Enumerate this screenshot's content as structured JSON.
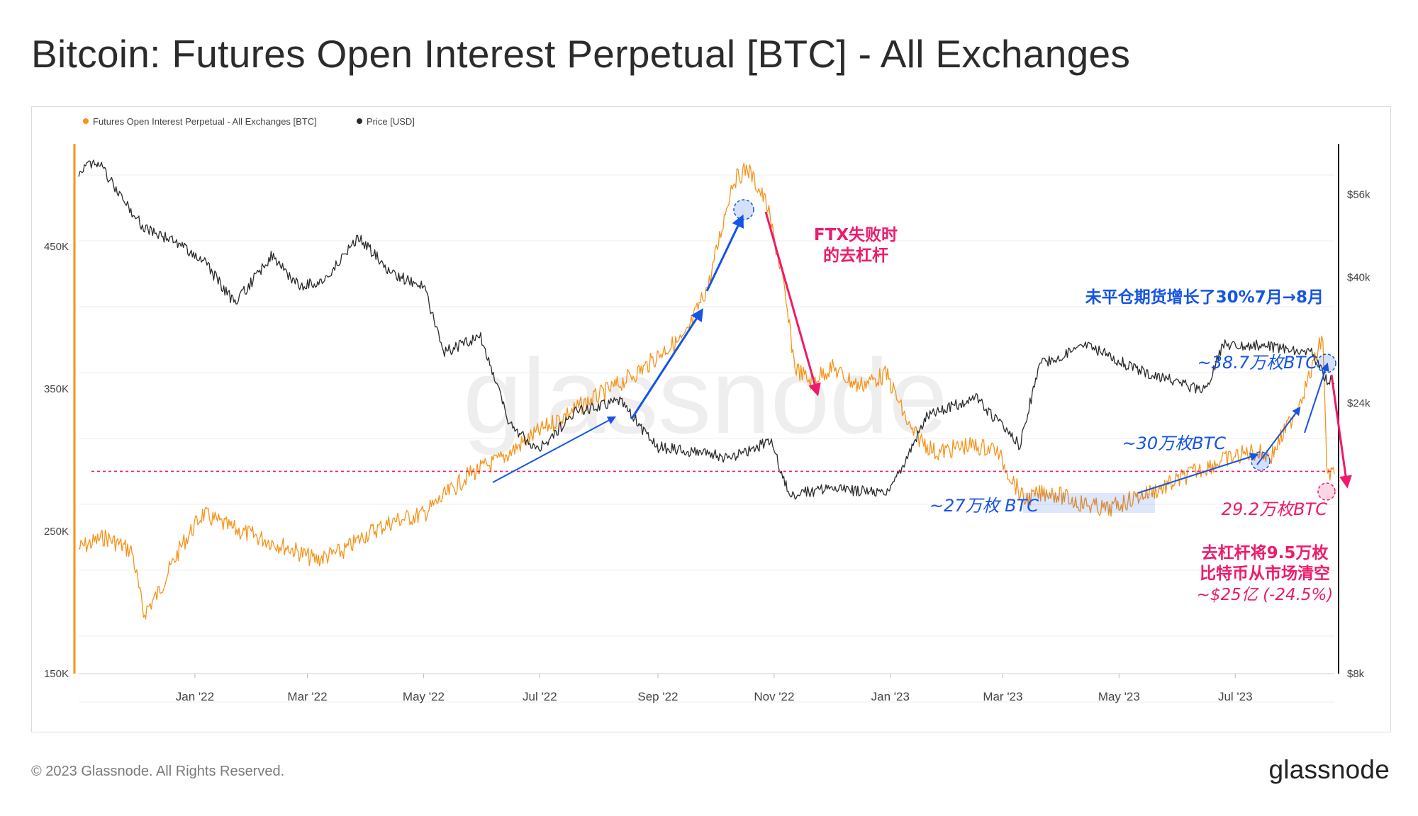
{
  "title": "Bitcoin: Futures Open Interest Perpetual [BTC] - All Exchanges",
  "footer": {
    "copyright": "© 2023 Glassnode. All Rights Reserved.",
    "logo": "glassnode"
  },
  "watermark": "glassnode",
  "colors": {
    "open_interest": "#f7931a",
    "price": "#2b2b2b",
    "annotation_blue": "#1554e6",
    "annotation_red": "#ef1a6b"
  },
  "chart_data": {
    "type": "line",
    "legend_position": "top-left",
    "grid": true,
    "x_ticks": [
      "Jan '22",
      "Mar '22",
      "May '22",
      "Jul '22",
      "Sep '22",
      "Nov '22",
      "Jan '23",
      "Mar '23",
      "May '23",
      "Jul '23"
    ],
    "y_left": {
      "ticks": [
        "150K",
        "250K",
        "350K",
        "450K"
      ],
      "range": [
        150000,
        520000
      ]
    },
    "y_right": {
      "ticks": [
        "$8k",
        "$24k",
        "$40k",
        "$56k"
      ],
      "range": [
        8000,
        68000
      ],
      "scale": "log"
    },
    "series": [
      {
        "name": "Futures Open Interest Perpetual - All Exchanges [BTC]",
        "axis": "left",
        "points": [
          [
            "2021-11-01",
            238000
          ],
          [
            "2021-11-15",
            246000
          ],
          [
            "2021-11-29",
            236000
          ],
          [
            "2021-12-05",
            192000
          ],
          [
            "2021-12-12",
            205000
          ],
          [
            "2021-12-25",
            240000
          ],
          [
            "2022-01-05",
            262000
          ],
          [
            "2022-01-20",
            252000
          ],
          [
            "2022-02-05",
            245000
          ],
          [
            "2022-02-20",
            238000
          ],
          [
            "2022-03-05",
            230000
          ],
          [
            "2022-03-20",
            236000
          ],
          [
            "2022-04-01",
            248000
          ],
          [
            "2022-04-15",
            257000
          ],
          [
            "2022-05-01",
            262000
          ],
          [
            "2022-05-15",
            278000
          ],
          [
            "2022-05-25",
            290000
          ],
          [
            "2022-06-10",
            300000
          ],
          [
            "2022-06-25",
            315000
          ],
          [
            "2022-07-10",
            328000
          ],
          [
            "2022-07-25",
            340000
          ],
          [
            "2022-08-10",
            352000
          ],
          [
            "2022-08-25",
            365000
          ],
          [
            "2022-09-05",
            378000
          ],
          [
            "2022-09-15",
            385000
          ],
          [
            "2022-09-28",
            425000
          ],
          [
            "2022-10-10",
            495000
          ],
          [
            "2022-10-18",
            505000
          ],
          [
            "2022-10-28",
            480000
          ],
          [
            "2022-11-05",
            430000
          ],
          [
            "2022-11-12",
            365000
          ],
          [
            "2022-11-20",
            355000
          ],
          [
            "2022-12-01",
            365000
          ],
          [
            "2022-12-15",
            352000
          ],
          [
            "2022-12-30",
            360000
          ],
          [
            "2023-01-12",
            320000
          ],
          [
            "2023-01-25",
            305000
          ],
          [
            "2023-02-10",
            310000
          ],
          [
            "2023-02-25",
            308000
          ],
          [
            "2023-03-12",
            272000
          ],
          [
            "2023-03-25",
            278000
          ],
          [
            "2023-04-10",
            270000
          ],
          [
            "2023-04-25",
            265000
          ],
          [
            "2023-05-10",
            274000
          ],
          [
            "2023-05-25",
            281000
          ],
          [
            "2023-06-10",
            292000
          ],
          [
            "2023-06-25",
            300000
          ],
          [
            "2023-07-10",
            306000
          ],
          [
            "2023-07-20",
            303000
          ],
          [
            "2023-07-31",
            330000
          ],
          [
            "2023-08-08",
            355000
          ],
          [
            "2023-08-16",
            387000
          ],
          [
            "2023-08-18",
            292000
          ],
          [
            "2023-08-22",
            290000
          ]
        ]
      },
      {
        "name": "Price [USD]",
        "axis": "right",
        "points": [
          [
            "2021-11-01",
            61500
          ],
          [
            "2021-11-10",
            64500
          ],
          [
            "2021-11-20",
            57500
          ],
          [
            "2021-12-05",
            49000
          ],
          [
            "2021-12-20",
            46500
          ],
          [
            "2022-01-05",
            43000
          ],
          [
            "2022-01-22",
            36000
          ],
          [
            "2022-02-10",
            43500
          ],
          [
            "2022-02-25",
            38500
          ],
          [
            "2022-03-10",
            39500
          ],
          [
            "2022-03-28",
            47000
          ],
          [
            "2022-04-15",
            40500
          ],
          [
            "2022-05-01",
            38500
          ],
          [
            "2022-05-12",
            29500
          ],
          [
            "2022-05-31",
            31500
          ],
          [
            "2022-06-15",
            22000
          ],
          [
            "2022-06-30",
            19800
          ],
          [
            "2022-07-20",
            23200
          ],
          [
            "2022-08-12",
            24300
          ],
          [
            "2022-08-31",
            20100
          ],
          [
            "2022-09-15",
            19800
          ],
          [
            "2022-10-10",
            19200
          ],
          [
            "2022-10-30",
            20600
          ],
          [
            "2022-11-09",
            16500
          ],
          [
            "2022-11-30",
            17000
          ],
          [
            "2022-12-31",
            16600
          ],
          [
            "2023-01-20",
            22800
          ],
          [
            "2023-02-15",
            24500
          ],
          [
            "2023-03-10",
            20200
          ],
          [
            "2023-03-20",
            28000
          ],
          [
            "2023-04-14",
            30400
          ],
          [
            "2023-05-10",
            27500
          ],
          [
            "2023-06-15",
            25200
          ],
          [
            "2023-06-25",
            30500
          ],
          [
            "2023-07-15",
            30300
          ],
          [
            "2023-08-10",
            29400
          ],
          [
            "2023-08-17",
            26600
          ],
          [
            "2023-08-22",
            26000
          ]
        ]
      }
    ],
    "threshold_line": {
      "value": 292000,
      "axis": "left",
      "style": "dashed"
    },
    "annotations": [
      {
        "text": "FTX失败时",
        "color": "red",
        "bold": true
      },
      {
        "text": "的去杠杆",
        "color": "red",
        "bold": true
      },
      {
        "text": "未平仓期货增长了30%7月→8月",
        "color": "blue",
        "bold": true
      },
      {
        "text": "~38.7万枚BTC",
        "color": "blue",
        "italic": true
      },
      {
        "text": "~30万枚BTC",
        "color": "blue",
        "italic": true
      },
      {
        "text": "~27万枚 BTC",
        "color": "blue",
        "italic": true
      },
      {
        "text": "29.2万枚BTC",
        "color": "red",
        "italic": true
      },
      {
        "text": "去杠杆将9.5万枚",
        "color": "red",
        "bold": true
      },
      {
        "text": "比特币从市场清空",
        "color": "red",
        "bold": true
      },
      {
        "text": "~$25亿 (-24.5%)",
        "color": "red",
        "italic": true
      }
    ]
  }
}
